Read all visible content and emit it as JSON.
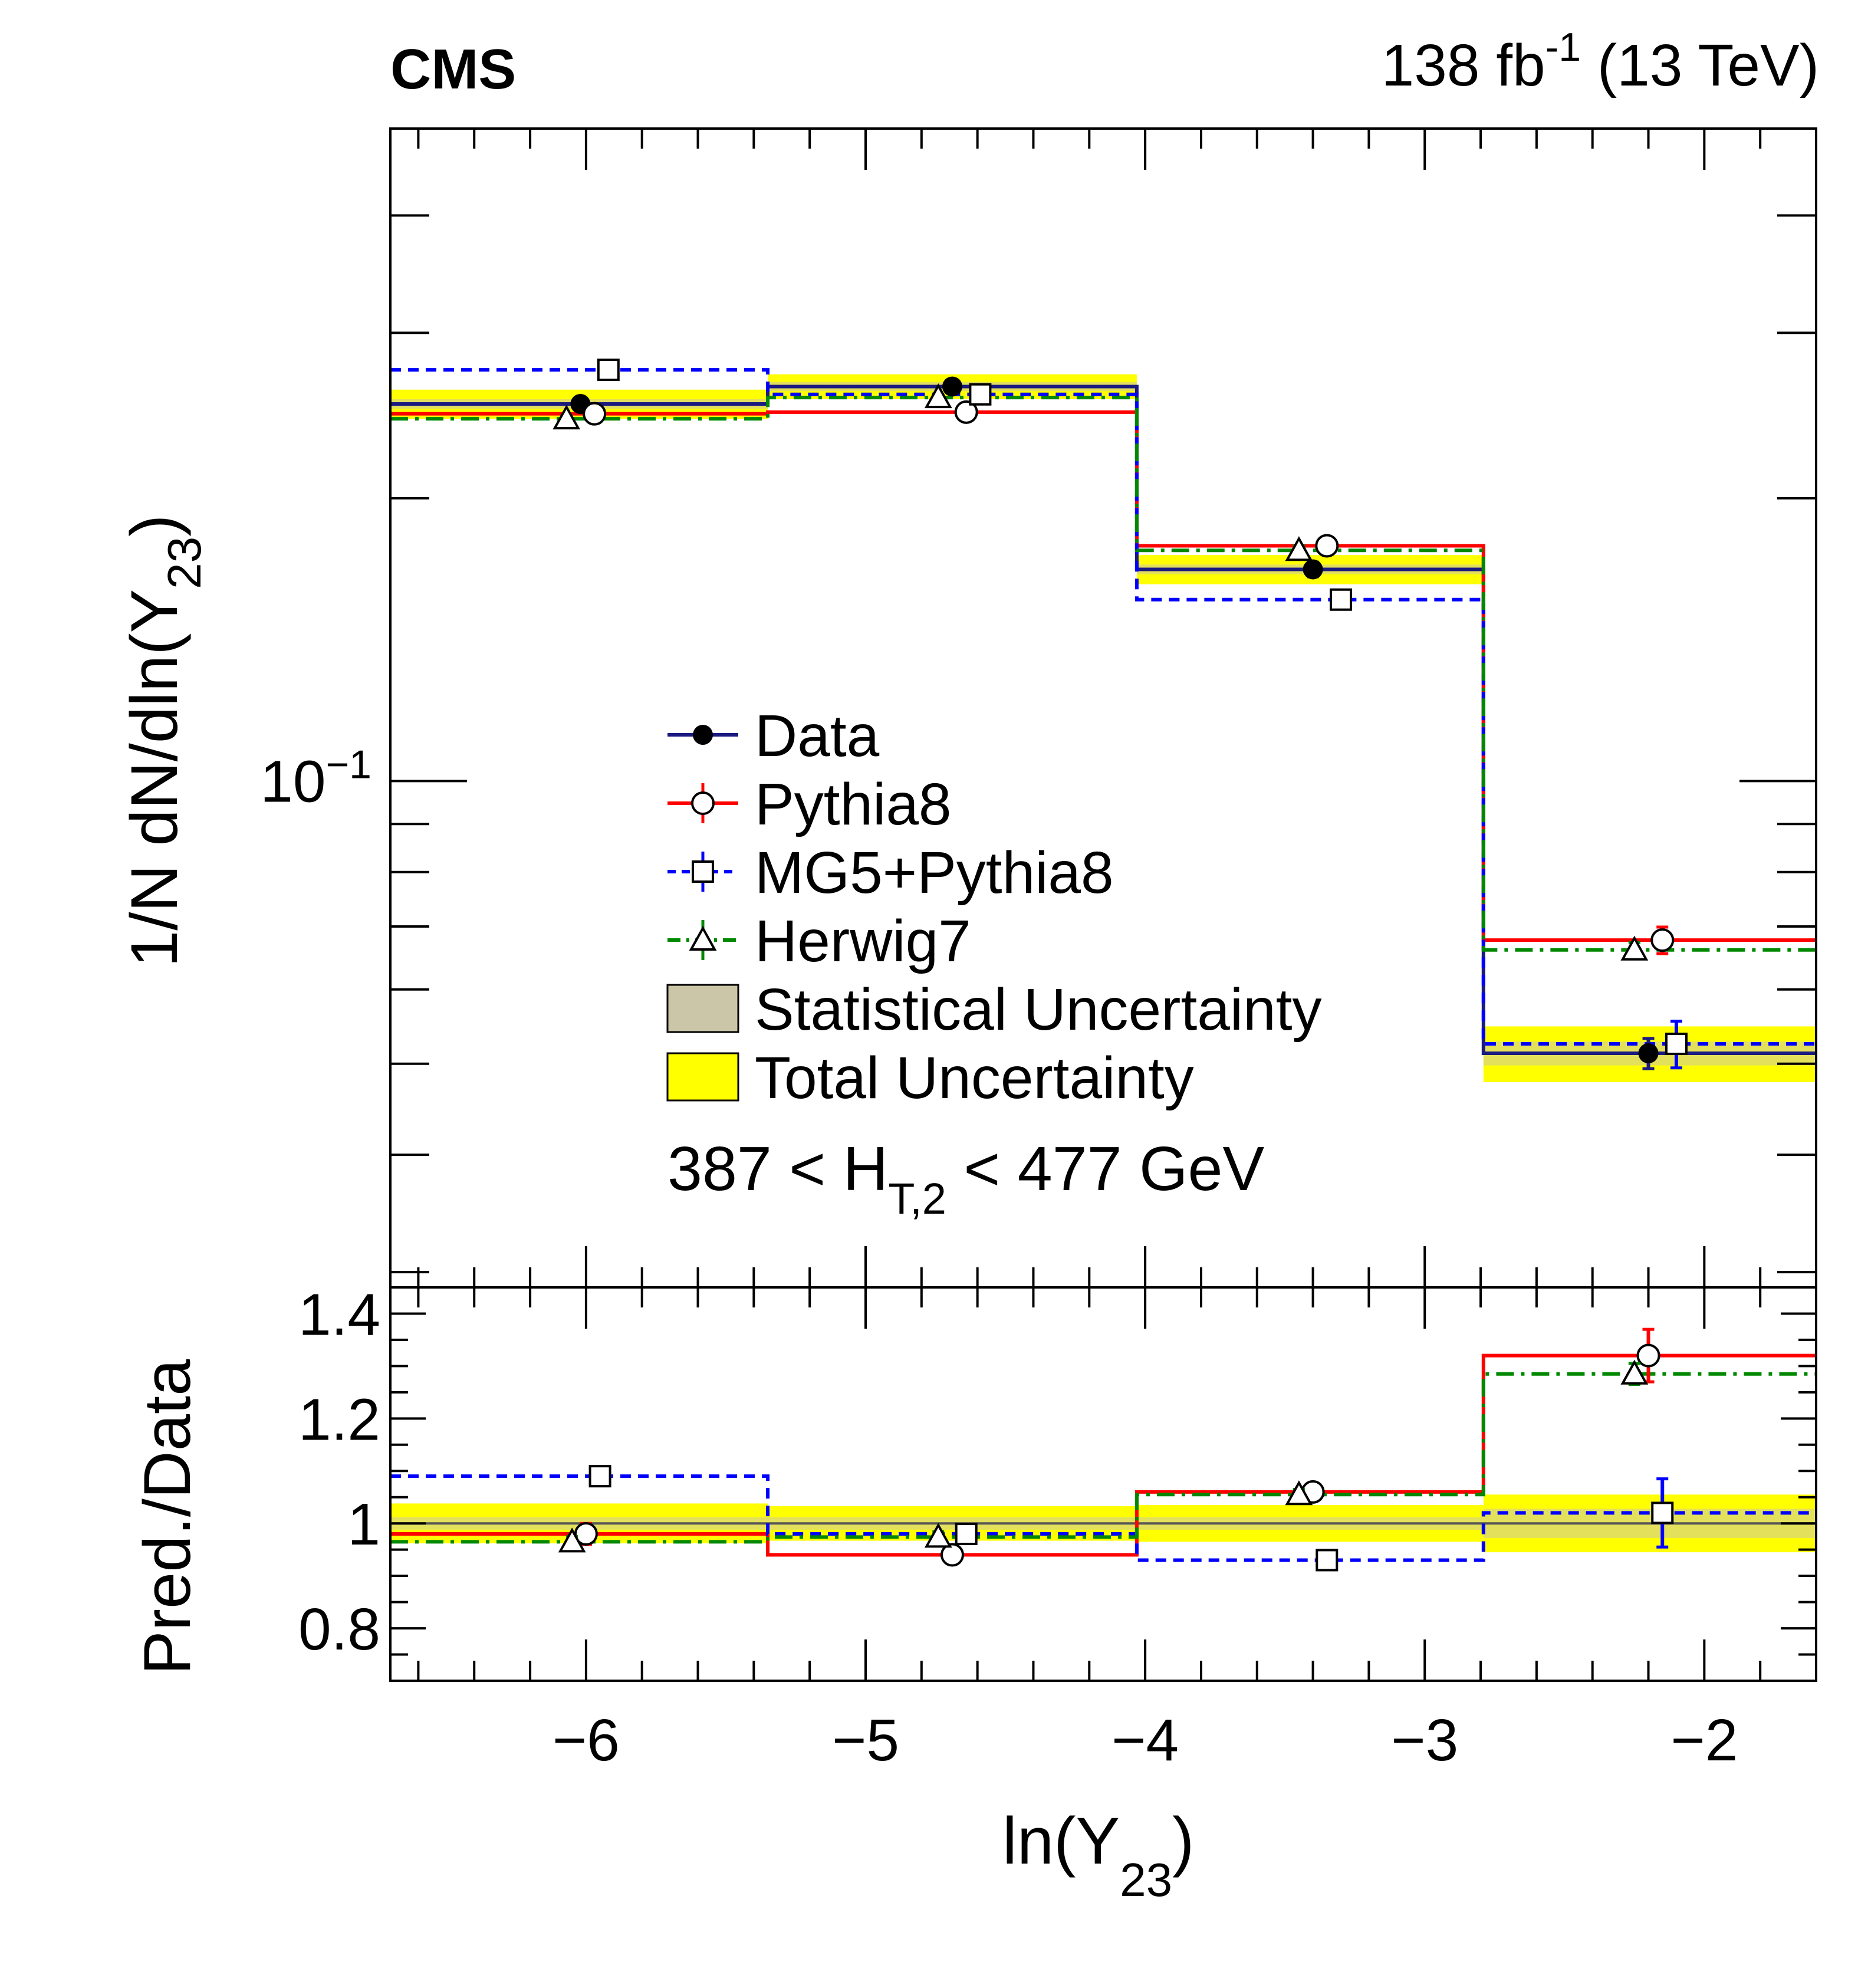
{
  "header": {
    "experiment": "CMS",
    "lumi_value": "138 fb",
    "lumi_exp": "-1",
    "lumi_energy": " (13 TeV)"
  },
  "chart_data": {
    "type": "step-histogram",
    "x_edges": [
      -6.7,
      -5.35,
      -4.03,
      -2.79,
      -1.6
    ],
    "xlim": [
      -6.7,
      -1.6
    ],
    "x_ticks": [
      -6,
      -5,
      -4,
      -3,
      -2
    ],
    "x_tick_labels": [
      "−6",
      "−5",
      "−4",
      "−3",
      "−2"
    ],
    "xlabel": {
      "main": "ln(Y",
      "sub": "23",
      "close": ")"
    },
    "legend": {
      "placement": "center-left",
      "entries": [
        {
          "key": "data",
          "label": "Data"
        },
        {
          "key": "pythia",
          "label": "Pythia8"
        },
        {
          "key": "mg5",
          "label": "MG5+Pythia8"
        },
        {
          "key": "herwig",
          "label": "Herwig7"
        },
        {
          "key": "stat",
          "label": "Statistical Uncertainty"
        },
        {
          "key": "total",
          "label": "Total Uncertainty"
        }
      ]
    },
    "annotation": {
      "pre": "387 < H",
      "sub": "T,2",
      "post": " < 477 GeV"
    },
    "colors": {
      "data": "#1a1a80",
      "pythia": "#ff0000",
      "mg5": "#0000ff",
      "herwig": "#008800",
      "stat": "#ccc6a8",
      "total": "#ffff00"
    },
    "top_panel": {
      "ylabel": {
        "main": "1/N dN/dln(Y",
        "sub": "23",
        "close": ")"
      },
      "yscale": "log",
      "ylim": [
        0.0289,
        0.495
      ],
      "y_tick_label": {
        "base": "10",
        "exp": "−1"
      },
      "series": [
        {
          "key": "data",
          "name": "Data",
          "values": [
            0.252,
            0.263,
            0.168,
            0.0513
          ],
          "errors": [
            0.004,
            0.004,
            0.003,
            0.0019
          ],
          "marker_x": [
            -6.02,
            -4.69,
            -3.4,
            -2.2
          ]
        },
        {
          "key": "pythia",
          "name": "Pythia8",
          "values": [
            0.246,
            0.247,
            0.178,
            0.0677
          ],
          "errors": [
            0.003,
            0.003,
            0.002,
            0.0022
          ],
          "marker_x": [
            -5.97,
            -4.64,
            -3.35,
            -2.15
          ]
        },
        {
          "key": "mg5",
          "name": "MG5+Pythia8",
          "values": [
            0.274,
            0.258,
            0.156,
            0.0525
          ],
          "errors": [
            0.003,
            0.003,
            0.002,
            0.003
          ],
          "marker_x": [
            -5.92,
            -4.59,
            -3.3,
            -2.1
          ]
        },
        {
          "key": "herwig",
          "name": "Herwig7",
          "values": [
            0.243,
            0.256,
            0.176,
            0.0661
          ],
          "errors": [
            0.002,
            0.002,
            0.002,
            0.0012
          ],
          "marker_x": [
            -6.07,
            -4.74,
            -3.45,
            -2.25
          ]
        }
      ],
      "total_uncertainty": [
        0.009,
        0.008,
        0.006,
        0.0035
      ],
      "stat_uncertainty": [
        0.003,
        0.003,
        0.002,
        0.0015
      ]
    },
    "ratio_panel": {
      "ylabel": "Pred./Data",
      "ylim": [
        0.7,
        1.45
      ],
      "y_ticks": [
        0.8,
        1.0,
        1.2,
        1.4
      ],
      "y_tick_labels": [
        "0.8",
        "1",
        "1.2",
        "1.4"
      ],
      "series": [
        {
          "key": "pythia",
          "values": [
            0.98,
            0.94,
            1.06,
            1.32
          ],
          "errors": [
            0.02,
            0.012,
            0.015,
            0.05
          ],
          "marker_x": [
            -6.0,
            -4.69,
            -3.4,
            -2.2
          ]
        },
        {
          "key": "mg5",
          "values": [
            1.09,
            0.98,
            0.93,
            1.02
          ],
          "errors": [
            0.012,
            0.012,
            0.012,
            0.065
          ],
          "marker_x": [
            -5.95,
            -4.64,
            -3.35,
            -2.15
          ]
        },
        {
          "key": "herwig",
          "values": [
            0.965,
            0.974,
            1.055,
            1.285
          ],
          "errors": [
            0.01,
            0.01,
            0.01,
            0.02
          ],
          "marker_x": [
            -6.05,
            -4.74,
            -3.45,
            -2.25
          ]
        }
      ],
      "total_uncertainty": [
        0.038,
        0.033,
        0.035,
        0.055
      ],
      "stat_uncertainty": [
        0.012,
        0.012,
        0.012,
        0.028
      ]
    }
  }
}
